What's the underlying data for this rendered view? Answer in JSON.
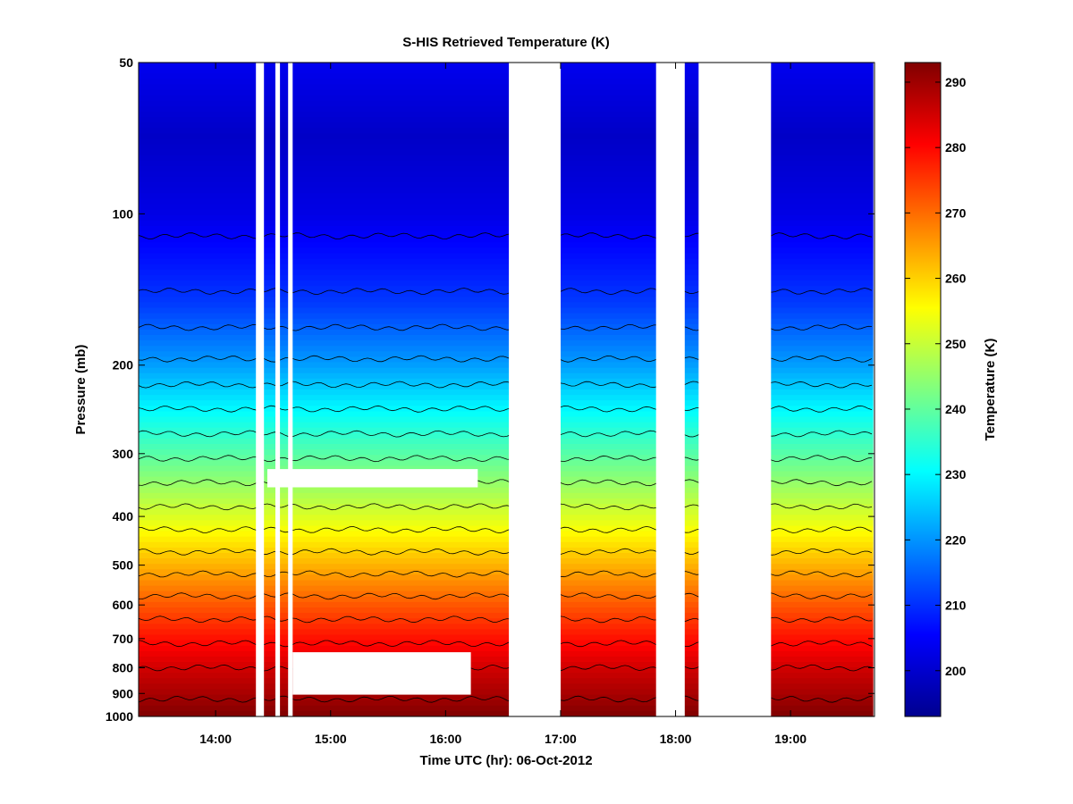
{
  "chart_data": {
    "type": "heatmap",
    "title": "S-HIS Retrieved Temperature (K)",
    "xlabel": "Time UTC (hr): 06-Oct-2012",
    "ylabel": "Pressure (mb)",
    "colorbar_label": "Temperature (K)",
    "x_range_hr": [
      13.33,
      19.73
    ],
    "x_ticks": [
      {
        "value": 14,
        "label": "14:00"
      },
      {
        "value": 15,
        "label": "15:00"
      },
      {
        "value": 16,
        "label": "16:00"
      },
      {
        "value": 17,
        "label": "17:00"
      },
      {
        "value": 18,
        "label": "18:00"
      },
      {
        "value": 19,
        "label": "19:00"
      }
    ],
    "y_scale": "log",
    "y_range_mb": [
      50,
      1000
    ],
    "y_ticks": [
      {
        "value": 50,
        "label": "50"
      },
      {
        "value": 100,
        "label": "100"
      },
      {
        "value": 200,
        "label": "200"
      },
      {
        "value": 300,
        "label": "300"
      },
      {
        "value": 400,
        "label": "400"
      },
      {
        "value": 500,
        "label": "500"
      },
      {
        "value": 600,
        "label": "600"
      },
      {
        "value": 700,
        "label": "700"
      },
      {
        "value": 800,
        "label": "800"
      },
      {
        "value": 900,
        "label": "900"
      },
      {
        "value": 1000,
        "label": "1000"
      }
    ],
    "colorbar_range_K": [
      193,
      293
    ],
    "colorbar_ticks": [
      {
        "value": 200,
        "label": "200"
      },
      {
        "value": 210,
        "label": "210"
      },
      {
        "value": 220,
        "label": "220"
      },
      {
        "value": 230,
        "label": "230"
      },
      {
        "value": 240,
        "label": "240"
      },
      {
        "value": 250,
        "label": "250"
      },
      {
        "value": 260,
        "label": "260"
      },
      {
        "value": 270,
        "label": "270"
      },
      {
        "value": 280,
        "label": "280"
      },
      {
        "value": 290,
        "label": "290"
      }
    ],
    "colormap": "jet",
    "contour_interval_K": 5,
    "temperature_profile": [
      {
        "p": 50,
        "t": 204
      },
      {
        "p": 70,
        "t": 200
      },
      {
        "p": 100,
        "t": 203
      },
      {
        "p": 150,
        "t": 211
      },
      {
        "p": 200,
        "t": 221
      },
      {
        "p": 250,
        "t": 231
      },
      {
        "p": 300,
        "t": 239
      },
      {
        "p": 400,
        "t": 252
      },
      {
        "p": 500,
        "t": 263
      },
      {
        "p": 600,
        "t": 272
      },
      {
        "p": 700,
        "t": 279
      },
      {
        "p": 800,
        "t": 285
      },
      {
        "p": 900,
        "t": 289
      },
      {
        "p": 1000,
        "t": 293
      }
    ],
    "data_gaps": [
      {
        "t0": 16.55,
        "t1": 17.0,
        "p0": 50,
        "p1": 1000
      },
      {
        "t0": 17.83,
        "t1": 18.08,
        "p0": 50,
        "p1": 1000
      },
      {
        "t0": 18.2,
        "t1": 18.83,
        "p0": 50,
        "p1": 1000
      },
      {
        "t0": 14.35,
        "t1": 14.42,
        "p0": 50,
        "p1": 1000
      },
      {
        "t0": 14.52,
        "t1": 14.56,
        "p0": 50,
        "p1": 1000
      },
      {
        "t0": 14.63,
        "t1": 14.67,
        "p0": 50,
        "p1": 1000
      },
      {
        "t0": 19.72,
        "t1": 19.73,
        "p0": 50,
        "p1": 1000
      },
      {
        "t0": 14.45,
        "t1": 16.28,
        "p0": 322,
        "p1": 350
      },
      {
        "t0": 14.67,
        "t1": 16.22,
        "p0": 745,
        "p1": 905
      }
    ]
  }
}
